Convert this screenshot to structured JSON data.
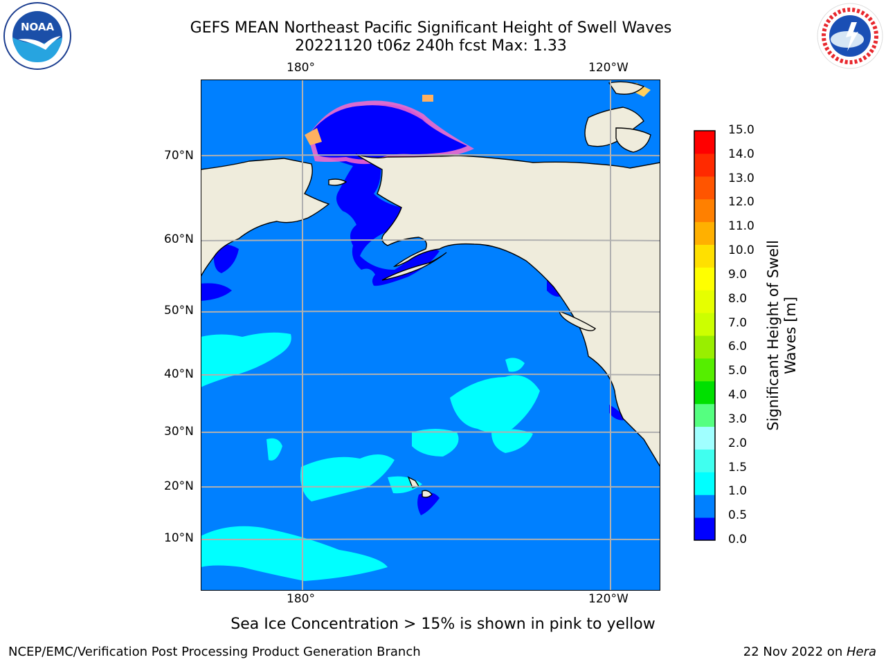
{
  "title": {
    "line1": "GEFS MEAN Northeast Pacific Significant Height of Swell Waves",
    "line2": "20221120 t06z 240h fcst   Max: 1.33"
  },
  "map": {
    "lon_labels": [
      "180°",
      "120°W"
    ],
    "lat_labels": [
      "70°N",
      "60°N",
      "50°N",
      "40°N",
      "30°N",
      "20°N",
      "10°N"
    ],
    "ocean_color": "#0080ff",
    "land_color": "#efecdc",
    "gridlines": true
  },
  "colorbar": {
    "title_line1": "Significant Height of Swell",
    "title_line2": "Waves [m]",
    "tick_labels": [
      "0.0",
      "0.5",
      "1.0",
      "1.5",
      "2.0",
      "3.0",
      "4.0",
      "5.0",
      "6.0",
      "7.0",
      "8.0",
      "9.0",
      "10.0",
      "11.0",
      "12.0",
      "13.0",
      "14.0",
      "15.0"
    ],
    "colors": [
      "#0000ff",
      "#0080ff",
      "#00ffff",
      "#40ffef",
      "#a0ffff",
      "#55ff80",
      "#00e000",
      "#55ee00",
      "#99ee00",
      "#ccff00",
      "#e6ff00",
      "#ffff00",
      "#ffe000",
      "#ffb000",
      "#ff8000",
      "#ff5500",
      "#ff2a00",
      "#ff0000"
    ]
  },
  "caption": "Sea Ice Concentration > 15% is shown in pink to yellow",
  "footer": {
    "left": "NCEP/EMC/Verification Post Processing Product Generation Branch",
    "right_prefix": "22 Nov 2022 on ",
    "right_host": "Hera"
  },
  "logos": {
    "left": "noaa-logo",
    "right": "nws-logo"
  }
}
